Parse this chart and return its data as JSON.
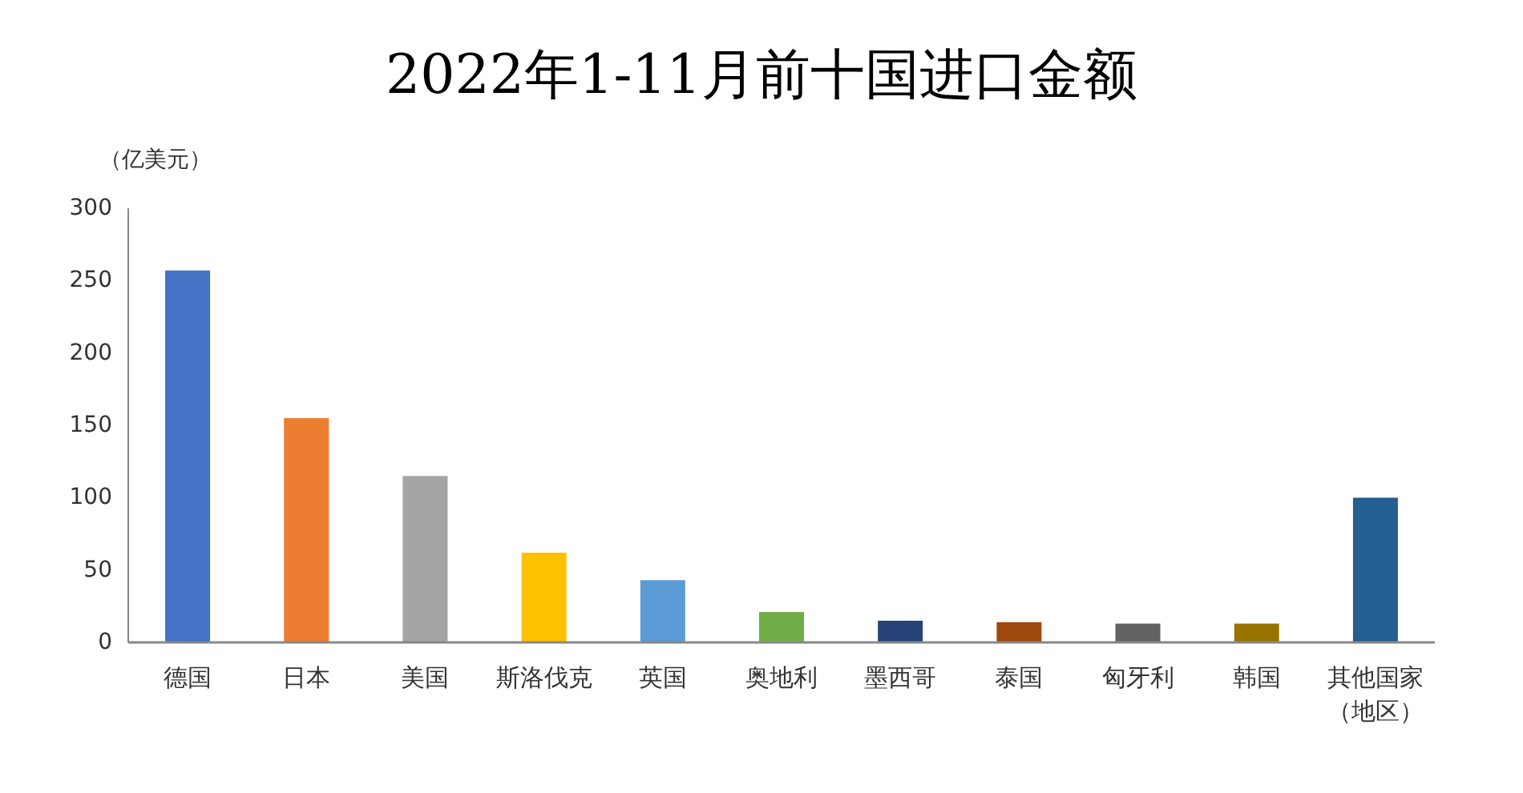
{
  "chart_data": {
    "type": "bar",
    "title": "2022年1-11月前十国进口金额",
    "ylabel": "（亿美元）",
    "categories": [
      "德国",
      "日本",
      "美国",
      "斯洛伐克",
      "英国",
      "奥地利",
      "墨西哥",
      "泰国",
      "匈牙利",
      "韩国",
      "其他国家（地区）"
    ],
    "values": [
      257,
      155,
      115,
      62,
      43,
      21,
      15,
      14,
      13,
      13,
      100
    ],
    "colors": [
      "#4472c4",
      "#ed7d31",
      "#a5a5a5",
      "#ffc000",
      "#5b9bd5",
      "#70ad47",
      "#264478",
      "#9e480e",
      "#636363",
      "#997300",
      "#255e91"
    ],
    "ylim": [
      0,
      300
    ],
    "yticks": [
      0,
      50,
      100,
      150,
      200,
      250,
      300
    ],
    "grid": false
  }
}
